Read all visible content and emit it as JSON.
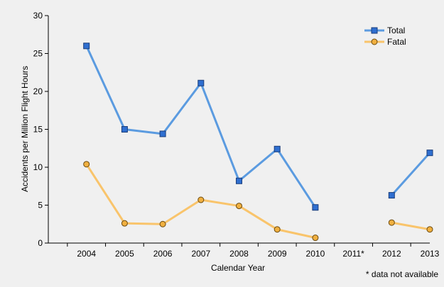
{
  "chart_data": {
    "type": "line",
    "xlabel": "Calendar Year",
    "ylabel": "Accidents per Million Flight Hours",
    "footnote": "* data not available",
    "categories": [
      "2004",
      "2005",
      "2006",
      "2007",
      "2008",
      "2009",
      "2010",
      "2011*",
      "2012",
      "2013"
    ],
    "ylim": [
      0,
      30
    ],
    "yticks": [
      "0",
      "5",
      "10",
      "15",
      "20",
      "25",
      "30"
    ],
    "grid": false,
    "legend_position": "top-right",
    "series": [
      {
        "name": "Total",
        "color": "#5b9be0",
        "marker": "square",
        "marker_fill": "#2f6fd0",
        "values": [
          26.0,
          15.0,
          14.4,
          21.1,
          8.2,
          12.4,
          4.7,
          null,
          6.3,
          11.9
        ]
      },
      {
        "name": "Fatal",
        "color": "#f9c46b",
        "marker": "circle",
        "marker_fill": "#f0b040",
        "values": [
          10.4,
          2.6,
          2.5,
          5.7,
          4.9,
          1.8,
          0.7,
          null,
          2.7,
          1.8
        ]
      }
    ]
  }
}
